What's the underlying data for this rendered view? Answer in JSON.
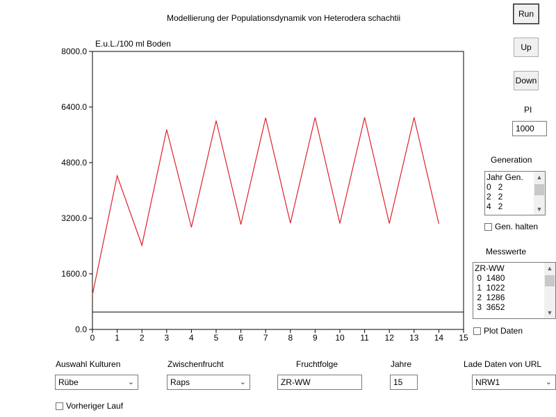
{
  "title": "Modellierung der Populationsdynamik von Heterodera schachtii",
  "buttons": {
    "run": "Run",
    "up": "Up",
    "down": "Down"
  },
  "pi": {
    "label": "PI",
    "value": "1000"
  },
  "generation": {
    "label": "Generation",
    "rows": [
      "Jahr Gen.",
      "0   2",
      "2   2",
      "4   2"
    ],
    "hold_label": "Gen. halten"
  },
  "messwerte": {
    "label": "Messwerte",
    "rows": [
      "ZR-WW",
      " 0  1480",
      " 1  1022",
      " 2  1286",
      " 3  3652"
    ],
    "plot_label": "Plot Daten"
  },
  "controls": {
    "kulturen": {
      "label": "Auswahl Kulturen",
      "value": "Rübe"
    },
    "zwischenfrucht": {
      "label": "Zwischenfrucht",
      "value": "Raps"
    },
    "fruchtfolge": {
      "label": "Fruchtfolge",
      "value": "ZR-WW"
    },
    "jahre": {
      "label": "Jahre",
      "value": "15"
    },
    "url": {
      "label": "Lade Daten von URL",
      "value": "NRW1"
    },
    "vorheriger": "Vorheriger Lauf"
  },
  "chart_data": {
    "type": "line",
    "ylabel": "E.u.L./100 ml Boden",
    "xlim": [
      0,
      15
    ],
    "ylim": [
      0,
      8000
    ],
    "x_ticks": [
      "0",
      "1",
      "2",
      "3",
      "4",
      "5",
      "6",
      "7",
      "8",
      "9",
      "10",
      "11",
      "12",
      "13",
      "14",
      "15"
    ],
    "y_ticks": [
      "0.0",
      "1600.0",
      "3200.0",
      "4800.0",
      "6400.0",
      "8000.0"
    ],
    "threshold": 500,
    "series": [
      {
        "color": "#e0202a",
        "x": [
          0,
          1,
          2,
          3,
          4,
          5,
          6,
          7,
          8,
          9,
          10,
          11,
          12,
          13,
          14
        ],
        "y": [
          1000,
          4420,
          2420,
          5750,
          2940,
          6010,
          3020,
          6090,
          3060,
          6100,
          3050,
          6100,
          3050,
          6100,
          3040
        ]
      }
    ],
    "threshold_color": "#000000"
  }
}
